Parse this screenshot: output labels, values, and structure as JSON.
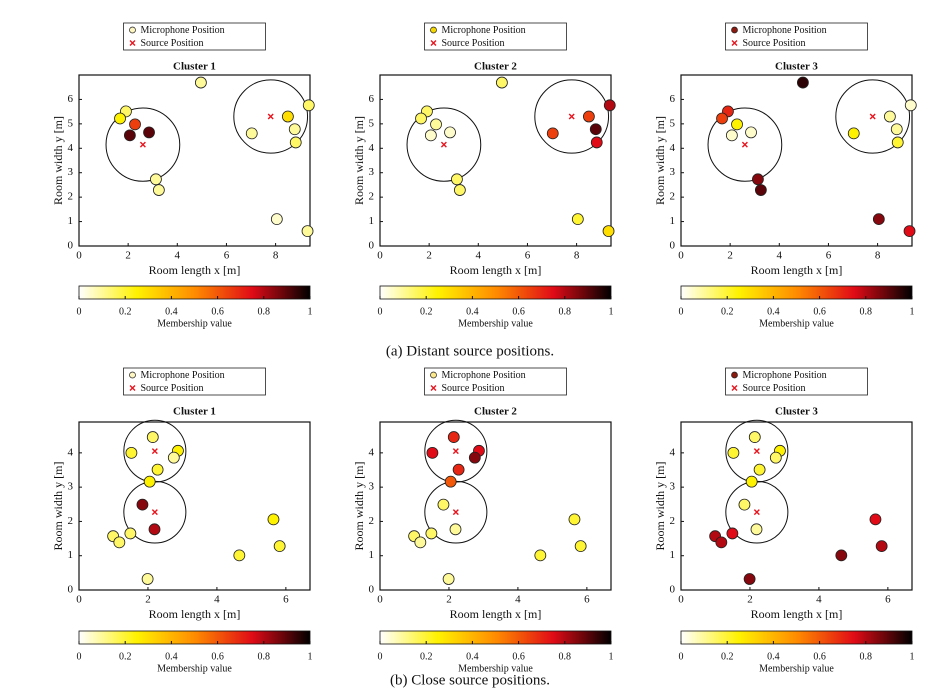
{
  "captions": [
    "(a) Distant source positions.",
    "(b) Close source positions."
  ],
  "chart_data": [
    {
      "type": "scatter",
      "title": "Cluster 1",
      "xlabel": "Room length x [m]",
      "ylabel": "Room width y [m]",
      "xlim": [
        0,
        9.4
      ],
      "ylim": [
        0,
        7
      ],
      "xticks": [
        0,
        2,
        4,
        6,
        8
      ],
      "yticks": [
        0,
        1,
        2,
        3,
        4,
        5,
        6
      ],
      "circle_radius": 1.5,
      "series": [
        {
          "name": "Microphone Position",
          "color": "#fdf6c0",
          "x": [
            4.96,
            1.91,
            1.67,
            2.28,
            2.07,
            2.85,
            3.13,
            3.25,
            7.03,
            8.5,
            9.35,
            8.78,
            8.82,
            8.05,
            9.3
          ],
          "values": [
            6.69,
            5.51,
            5.22,
            4.98,
            4.53,
            4.65,
            2.73,
            2.29,
            4.61,
            5.3,
            5.76,
            4.78,
            4.24,
            1.1,
            0.61
          ]
        },
        {
          "name": "Source Position",
          "color": "#e8141e",
          "x": [
            2.6,
            7.8
          ],
          "values": [
            4.15,
            5.3
          ]
        }
      ],
      "membership": [
        0.1,
        0.15,
        0.25,
        0.65,
        0.9,
        0.9,
        0.1,
        0.1,
        0.1,
        0.3,
        0.15,
        0.1,
        0.15,
        0.05,
        0.1
      ],
      "colorbar": {
        "label": "Membership value",
        "lim": [
          0,
          1
        ],
        "ticks": [
          0,
          0.2,
          0.4,
          0.6,
          0.8,
          1
        ],
        "colors": [
          "#ffffff",
          "#fff200",
          "#ff8c00",
          "#e00b16",
          "#000000"
        ]
      }
    },
    {
      "type": "scatter",
      "title": "Cluster 2",
      "xlabel": "Room length x [m]",
      "ylabel": "Room width y [m]",
      "xlim": [
        0,
        9.4
      ],
      "ylim": [
        0,
        7
      ],
      "xticks": [
        0,
        2,
        4,
        6,
        8
      ],
      "yticks": [
        0,
        1,
        2,
        3,
        4,
        5,
        6
      ],
      "circle_radius": 1.5,
      "series": [
        {
          "name": "Microphone Position",
          "color": "#f5d800",
          "x": [
            4.96,
            1.91,
            1.67,
            2.28,
            2.07,
            2.85,
            3.13,
            3.25,
            7.03,
            8.5,
            9.35,
            8.78,
            8.82,
            8.05,
            9.3
          ],
          "values": [
            6.69,
            5.51,
            5.22,
            4.98,
            4.53,
            4.65,
            2.73,
            2.29,
            4.61,
            5.3,
            5.76,
            4.78,
            4.24,
            1.1,
            0.61
          ]
        },
        {
          "name": "Source Position",
          "color": "#e8141e",
          "x": [
            2.6,
            7.8
          ],
          "values": [
            4.15,
            5.3
          ]
        }
      ],
      "membership": [
        0.15,
        0.15,
        0.15,
        0.1,
        0.05,
        0.05,
        0.15,
        0.15,
        0.65,
        0.65,
        0.8,
        0.9,
        0.75,
        0.2,
        0.3
      ],
      "colorbar": {
        "label": "Membership value",
        "lim": [
          0,
          1
        ],
        "ticks": [
          0,
          0.2,
          0.4,
          0.6,
          0.8,
          1
        ],
        "colors": [
          "#ffffff",
          "#fff200",
          "#ff8c00",
          "#e00b16",
          "#000000"
        ]
      }
    },
    {
      "type": "scatter",
      "title": "Cluster 3",
      "xlabel": "Room length x [m]",
      "ylabel": "Room width y [m]",
      "xlim": [
        0,
        9.4
      ],
      "ylim": [
        0,
        7
      ],
      "xticks": [
        0,
        2,
        4,
        6,
        8
      ],
      "yticks": [
        0,
        1,
        2,
        3,
        4,
        5,
        6
      ],
      "circle_radius": 1.5,
      "series": [
        {
          "name": "Microphone Position",
          "color": "#8b1a10",
          "x": [
            4.96,
            1.91,
            1.67,
            2.28,
            2.07,
            2.85,
            3.13,
            3.25,
            7.03,
            8.5,
            9.35,
            8.78,
            8.82,
            8.05,
            9.3
          ],
          "values": [
            6.69,
            5.51,
            5.22,
            4.98,
            4.53,
            4.65,
            2.73,
            2.29,
            4.61,
            5.3,
            5.76,
            4.78,
            4.24,
            1.1,
            0.61
          ]
        },
        {
          "name": "Source Position",
          "color": "#e8141e",
          "x": [
            2.6,
            7.8
          ],
          "values": [
            4.15,
            5.3
          ]
        }
      ],
      "membership": [
        0.95,
        0.7,
        0.65,
        0.25,
        0.05,
        0.05,
        0.85,
        0.9,
        0.25,
        0.1,
        0.05,
        0.1,
        0.2,
        0.85,
        0.75
      ],
      "colorbar": {
        "label": "Membership value",
        "lim": [
          0,
          1
        ],
        "ticks": [
          0,
          0.2,
          0.4,
          0.6,
          0.8,
          1
        ],
        "colors": [
          "#ffffff",
          "#fff200",
          "#ff8c00",
          "#e00b16",
          "#000000"
        ]
      }
    },
    {
      "type": "scatter",
      "title": "Cluster 1",
      "xlabel": "Room length x [m]",
      "ylabel": "Room width y [m]",
      "xlim": [
        0,
        6.7
      ],
      "ylim": [
        0,
        4.9
      ],
      "xticks": [
        0,
        2,
        4,
        6
      ],
      "yticks": [
        0,
        1,
        2,
        3,
        4
      ],
      "circle_radius": 0.9,
      "series": [
        {
          "name": "Microphone Position",
          "color": "#fdf6c0",
          "x": [
            2.14,
            1.52,
            2.87,
            2.75,
            2.28,
            2.05,
            1.84,
            2.19,
            1.49,
            0.99,
            1.17,
            1.99,
            4.65,
            5.64,
            5.82
          ],
          "values": [
            4.46,
            4.0,
            4.06,
            3.86,
            3.51,
            3.16,
            2.49,
            1.77,
            1.65,
            1.57,
            1.39,
            0.32,
            1.01,
            2.06,
            1.28
          ]
        },
        {
          "name": "Source Position",
          "color": "#e8141e",
          "x": [
            2.2,
            2.2
          ],
          "values": [
            4.05,
            2.27
          ]
        }
      ],
      "membership": [
        0.15,
        0.2,
        0.25,
        0.1,
        0.2,
        0.25,
        0.85,
        0.8,
        0.15,
        0.15,
        0.15,
        0.1,
        0.2,
        0.25,
        0.2
      ],
      "colorbar": {
        "label": "Membership value",
        "lim": [
          0,
          1
        ],
        "ticks": [
          0,
          0.2,
          0.4,
          0.6,
          0.8,
          1
        ],
        "colors": [
          "#ffffff",
          "#fff200",
          "#ff8c00",
          "#e00b16",
          "#000000"
        ]
      }
    },
    {
      "type": "scatter",
      "title": "Cluster 2",
      "xlabel": "Room length x [m]",
      "ylabel": "Room width y [m]",
      "xlim": [
        0,
        6.7
      ],
      "ylim": [
        0,
        4.9
      ],
      "xticks": [
        0,
        2,
        4,
        6
      ],
      "yticks": [
        0,
        1,
        2,
        3,
        4
      ],
      "circle_radius": 0.9,
      "series": [
        {
          "name": "Microphone Position",
          "color": "#fbe88a",
          "x": [
            2.14,
            1.52,
            2.87,
            2.75,
            2.28,
            2.05,
            1.84,
            2.19,
            1.49,
            0.99,
            1.17,
            1.99,
            4.65,
            5.64,
            5.82
          ],
          "values": [
            4.46,
            4.0,
            4.06,
            3.86,
            3.51,
            3.16,
            2.49,
            1.77,
            1.65,
            1.57,
            1.39,
            0.32,
            1.01,
            2.06,
            1.28
          ]
        },
        {
          "name": "Source Position",
          "color": "#e8141e",
          "x": [
            2.2,
            2.2
          ],
          "values": [
            4.05,
            2.27
          ]
        }
      ],
      "membership": [
        0.7,
        0.75,
        0.75,
        0.85,
        0.7,
        0.6,
        0.15,
        0.1,
        0.15,
        0.15,
        0.1,
        0.1,
        0.2,
        0.2,
        0.2
      ],
      "colorbar": {
        "label": "Membership value",
        "lim": [
          0,
          1
        ],
        "ticks": [
          0,
          0.2,
          0.4,
          0.6,
          0.8,
          1
        ],
        "colors": [
          "#ffffff",
          "#fff200",
          "#ff8c00",
          "#e00b16",
          "#000000"
        ]
      }
    },
    {
      "type": "scatter",
      "title": "Cluster 3",
      "xlabel": "Room length x [m]",
      "ylabel": "Room width y [m]",
      "xlim": [
        0,
        6.7
      ],
      "ylim": [
        0,
        4.9
      ],
      "xticks": [
        0,
        2,
        4,
        6
      ],
      "yticks": [
        0,
        1,
        2,
        3,
        4
      ],
      "circle_radius": 0.9,
      "series": [
        {
          "name": "Microphone Position",
          "color": "#8b1a10",
          "x": [
            2.14,
            1.52,
            2.87,
            2.75,
            2.28,
            2.05,
            1.84,
            2.19,
            1.49,
            0.99,
            1.17,
            1.99,
            4.65,
            5.64,
            5.82
          ],
          "values": [
            4.46,
            4.0,
            4.06,
            3.86,
            3.51,
            3.16,
            2.49,
            1.77,
            1.65,
            1.57,
            1.39,
            0.32,
            1.01,
            2.06,
            1.28
          ]
        },
        {
          "name": "Source Position",
          "color": "#e8141e",
          "x": [
            2.2,
            2.2
          ],
          "values": [
            4.05,
            2.27
          ]
        }
      ],
      "membership": [
        0.15,
        0.2,
        0.25,
        0.15,
        0.2,
        0.25,
        0.15,
        0.1,
        0.75,
        0.8,
        0.8,
        0.85,
        0.85,
        0.75,
        0.8
      ],
      "colorbar": {
        "label": "Membership value",
        "lim": [
          0,
          1
        ],
        "ticks": [
          0,
          0.2,
          0.4,
          0.6,
          0.8,
          1
        ],
        "colors": [
          "#ffffff",
          "#fff200",
          "#ff8c00",
          "#e00b16",
          "#000000"
        ]
      }
    }
  ]
}
